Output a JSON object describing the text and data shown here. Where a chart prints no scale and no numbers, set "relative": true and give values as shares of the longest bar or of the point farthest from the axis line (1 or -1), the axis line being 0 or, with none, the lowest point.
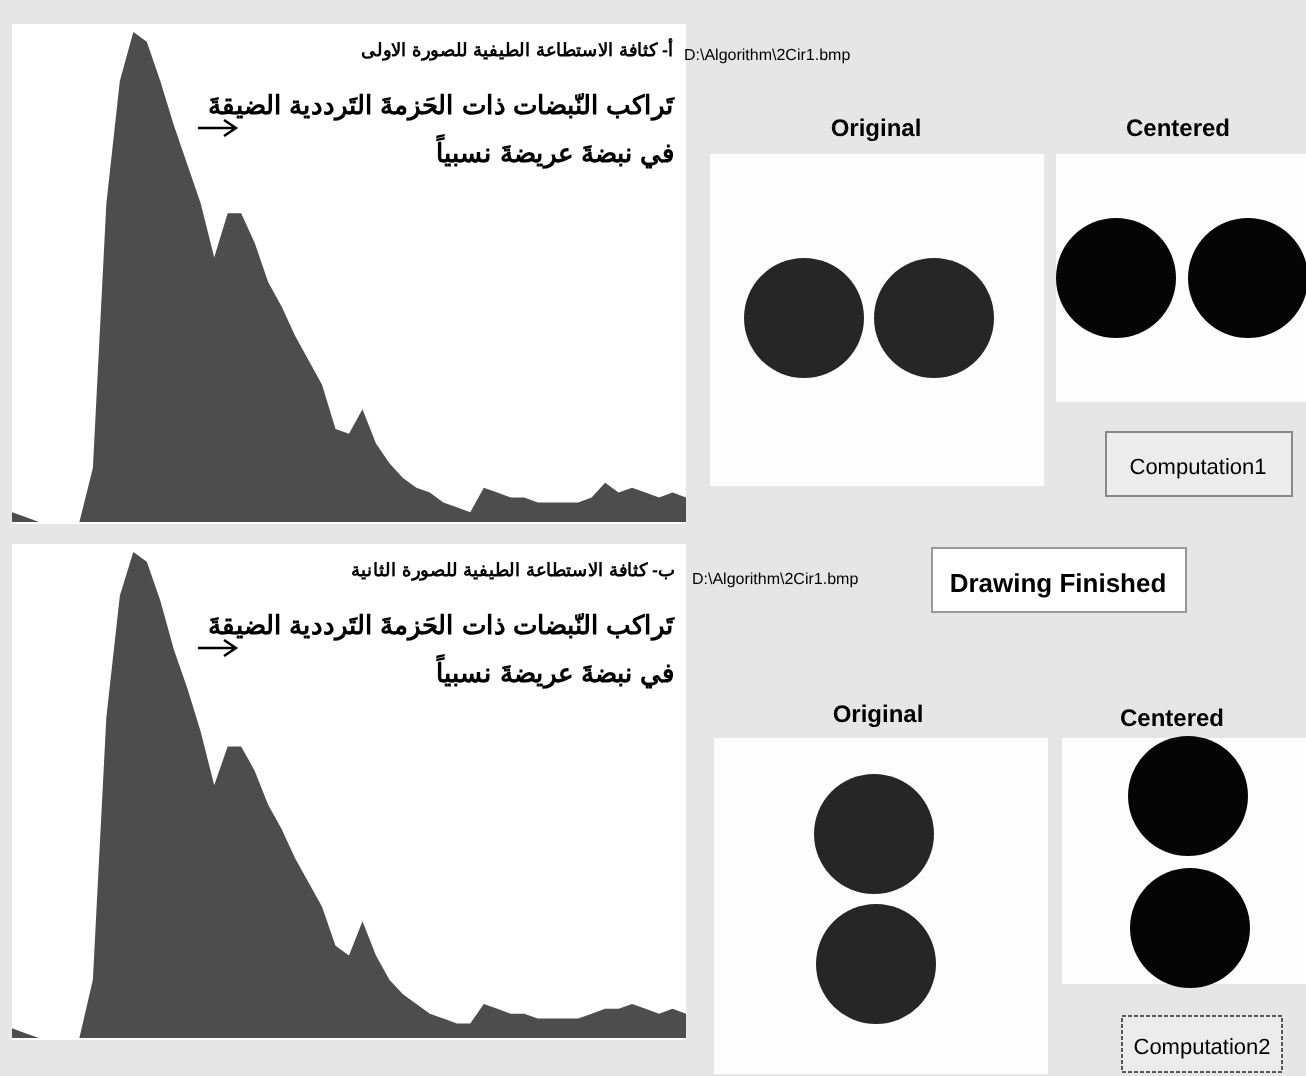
{
  "chart_data": [
    {
      "type": "area",
      "relative": true,
      "title": "أ- كثافة الاستطاعة الطيفية للصورة الاولى",
      "annotations": [
        "تَراكب النّبضات ذات الحَزمةَ التَرددية الضيقةَ",
        "في نبضةَ عريضةَ نسبياً"
      ],
      "color": "#4d4d4d",
      "categories": [
        null,
        null,
        null,
        null,
        null,
        null,
        null,
        null,
        null,
        null,
        null,
        null,
        null,
        null,
        null,
        null,
        null,
        null,
        null,
        null,
        null,
        null,
        null,
        null,
        null,
        null,
        null,
        null,
        null,
        null,
        null,
        null,
        null,
        null,
        null,
        null,
        null,
        null,
        null,
        null,
        null,
        null,
        null,
        null,
        null,
        null,
        null,
        null,
        null,
        null,
        null
      ],
      "values": [
        0.02,
        0.01,
        0,
        0,
        0,
        0,
        0.11,
        0.65,
        0.9,
        1,
        0.98,
        0.9,
        0.81,
        0.73,
        0.65,
        0.54,
        0.63,
        0.63,
        0.57,
        0.49,
        0.44,
        0.38,
        0.33,
        0.28,
        0.19,
        0.18,
        0.23,
        0.16,
        0.12,
        0.09,
        0.07,
        0.06,
        0.04,
        0.03,
        0.02,
        0.07,
        0.06,
        0.05,
        0.05,
        0.04,
        0.04,
        0.04,
        0.04,
        0.05,
        0.08,
        0.06,
        0.07,
        0.06,
        0.05,
        0.06,
        0.05
      ]
    },
    {
      "type": "area",
      "relative": true,
      "title": "ب- كثافة الاستطاعة الطيفية للصورة الثانية",
      "annotations": [
        "تَراكب النّبضات ذات الحَزمةَ التَرددية الضيقةَ",
        "في نبضةَ عريضةَ نسبياً"
      ],
      "color": "#4d4d4d",
      "categories": [
        null,
        null,
        null,
        null,
        null,
        null,
        null,
        null,
        null,
        null,
        null,
        null,
        null,
        null,
        null,
        null,
        null,
        null,
        null,
        null,
        null,
        null,
        null,
        null,
        null,
        null,
        null,
        null,
        null,
        null,
        null,
        null,
        null,
        null,
        null,
        null,
        null,
        null,
        null,
        null,
        null,
        null,
        null,
        null,
        null,
        null,
        null,
        null,
        null,
        null,
        null
      ],
      "values": [
        0.02,
        0.01,
        0,
        0,
        0,
        0,
        0.12,
        0.66,
        0.91,
        1,
        0.98,
        0.9,
        0.8,
        0.72,
        0.63,
        0.52,
        0.6,
        0.6,
        0.55,
        0.48,
        0.43,
        0.37,
        0.32,
        0.27,
        0.19,
        0.17,
        0.24,
        0.17,
        0.12,
        0.09,
        0.07,
        0.05,
        0.04,
        0.03,
        0.03,
        0.07,
        0.06,
        0.05,
        0.05,
        0.04,
        0.04,
        0.04,
        0.04,
        0.05,
        0.06,
        0.06,
        0.07,
        0.06,
        0.05,
        0.06,
        0.05
      ]
    },
    {
      "type": "other",
      "annotations": [
        "D:\\Algorithm\\2Cir1.bmp",
        "Original",
        "Centered",
        "Computation1",
        "D:\\Algorithm\\2Cir1.bmp",
        "Drawing Finished",
        "Original",
        "Centered",
        "Computation2"
      ]
    }
  ]
}
